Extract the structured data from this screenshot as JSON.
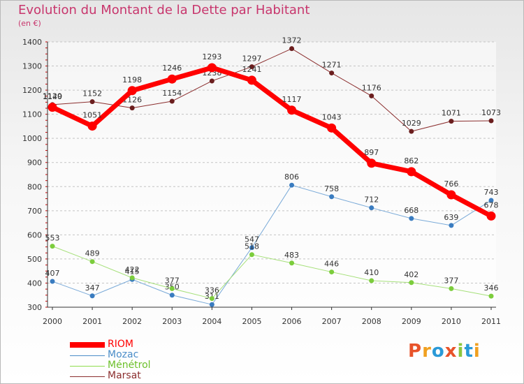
{
  "header": {
    "title": "Evolution du Montant de la Dette par Habitant",
    "subtitle": "(en €)"
  },
  "logo": {
    "text": "Proxiti"
  },
  "colors": {
    "title": "#c8366d",
    "RIOM": "#ff0000",
    "Mozac": "#4a8dc8",
    "Ménétrol": "#8fdc4c",
    "Marsat": "#8b2e2e"
  },
  "chart_data": {
    "type": "line",
    "title": "Evolution du Montant de la Dette par Habitant",
    "subtitle": "(en €)",
    "categories": [
      "2000",
      "2001",
      "2002",
      "2003",
      "2004",
      "2005",
      "2006",
      "2007",
      "2008",
      "2009",
      "2010",
      "2011"
    ],
    "ylim": [
      300,
      1400
    ],
    "yticks": [
      300,
      400,
      500,
      600,
      700,
      800,
      900,
      1000,
      1100,
      1200,
      1300,
      1400
    ],
    "grid": "horizontal-dashed",
    "legend": "bottom-left",
    "series": [
      {
        "name": "RIOM",
        "values": [
          1129,
          1051,
          1198,
          1246,
          1293,
          1241,
          1117,
          1043,
          897,
          862,
          766,
          678
        ],
        "color": "#ff0000"
      },
      {
        "name": "Mozac",
        "values": [
          407,
          347,
          415,
          350,
          311,
          547,
          806,
          758,
          712,
          668,
          639,
          743
        ],
        "color": "#4a8dc8"
      },
      {
        "name": "Ménétrol",
        "values": [
          553,
          489,
          422,
          377,
          336,
          518,
          483,
          446,
          410,
          402,
          377,
          346
        ],
        "color": "#8fdc4c"
      },
      {
        "name": "Marsat",
        "values": [
          1140,
          1152,
          1126,
          1154,
          1238,
          1297,
          1372,
          1271,
          1176,
          1029,
          1071,
          1073
        ],
        "color": "#8b2e2e"
      }
    ]
  }
}
